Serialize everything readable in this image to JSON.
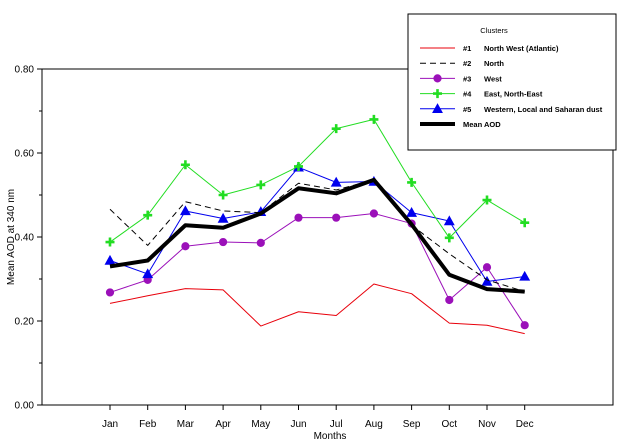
{
  "chart_data": {
    "type": "line",
    "title": "",
    "xlabel": "Months",
    "ylabel": "Mean AOD at 340 nm",
    "ylim": [
      0.0,
      0.8
    ],
    "yticks": [
      "0.00",
      "0.20",
      "0.40",
      "0.60",
      "0.80"
    ],
    "categories": [
      "Jan",
      "Feb",
      "Mar",
      "Apr",
      "May",
      "Jun",
      "Jul",
      "Aug",
      "Sep",
      "Oct",
      "Nov",
      "Dec"
    ],
    "legend": {
      "title": "Clusters",
      "placement": "top-right"
    },
    "series": [
      {
        "id": "#1",
        "name": "North West (Atlantic)",
        "color": "#e8000b",
        "style": "solid",
        "marker": "none",
        "values": [
          0.242,
          0.26,
          0.277,
          0.274,
          0.188,
          0.222,
          0.213,
          0.288,
          0.265,
          0.195,
          0.19,
          0.17
        ]
      },
      {
        "id": "#2",
        "name": "North",
        "color": "#000000",
        "style": "dashed",
        "marker": "none",
        "values": [
          0.466,
          0.38,
          0.484,
          0.462,
          0.458,
          0.528,
          0.512,
          0.536,
          0.428,
          0.36,
          0.298,
          0.27
        ]
      },
      {
        "id": "#3",
        "name": "West",
        "color": "#9b10b9",
        "style": "solid",
        "marker": "circle",
        "values": [
          0.268,
          0.298,
          0.378,
          0.388,
          0.386,
          0.446,
          0.446,
          0.456,
          0.432,
          0.25,
          0.328,
          0.19
        ]
      },
      {
        "id": "#4",
        "name": "East, North-East",
        "color": "#22dd22",
        "style": "solid",
        "marker": "plus",
        "values": [
          0.388,
          0.452,
          0.572,
          0.5,
          0.524,
          0.568,
          0.658,
          0.68,
          0.53,
          0.398,
          0.488,
          0.434
        ]
      },
      {
        "id": "#5",
        "name": "Western,  Local and Saharan dust",
        "color": "#0000ee",
        "style": "solid",
        "marker": "triangle",
        "values": [
          0.344,
          0.312,
          0.462,
          0.444,
          0.46,
          0.566,
          0.53,
          0.532,
          0.458,
          0.438,
          0.294,
          0.306
        ]
      },
      {
        "id": "",
        "name": "Mean AOD",
        "color": "#000000",
        "style": "thick",
        "marker": "none",
        "values": [
          0.33,
          0.344,
          0.428,
          0.422,
          0.456,
          0.516,
          0.504,
          0.536,
          0.43,
          0.31,
          0.276,
          0.27
        ]
      }
    ]
  }
}
